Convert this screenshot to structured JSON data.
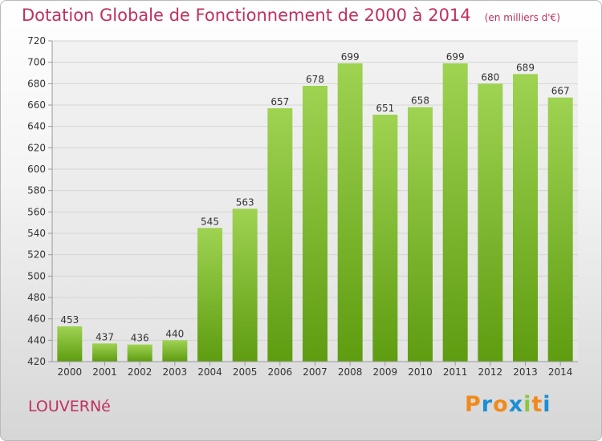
{
  "title": "Dotation Globale de Fonctionnement de 2000 à 2014",
  "subtitle": "(en milliers d'€)",
  "commune": "LOUVERNé",
  "logo": {
    "text": "Proxiti",
    "letter_colors": [
      "#f08a1c",
      "#1b8fd4",
      "#f08a1c",
      "#1b8fd4",
      "#8cc63f",
      "#f08a1c",
      "#1b8fd4"
    ]
  },
  "colors": {
    "bar_light": "#9fd352",
    "bar_dark": "#5e9c10",
    "title": "#c0305e",
    "grid": "#d4d4d4"
  },
  "chart_data": {
    "type": "bar",
    "categories": [
      "2000",
      "2001",
      "2002",
      "2003",
      "2004",
      "2005",
      "2006",
      "2007",
      "2008",
      "2009",
      "2010",
      "2011",
      "2012",
      "2013",
      "2014"
    ],
    "values": [
      453,
      437,
      436,
      440,
      545,
      563,
      657,
      678,
      699,
      651,
      658,
      699,
      680,
      689,
      667
    ],
    "ylim": [
      420,
      720
    ],
    "yticks": [
      420,
      440,
      460,
      480,
      500,
      520,
      540,
      560,
      580,
      600,
      620,
      640,
      660,
      680,
      700,
      720
    ],
    "grid": true,
    "legend": "none",
    "xlabel": "",
    "ylabel": ""
  }
}
